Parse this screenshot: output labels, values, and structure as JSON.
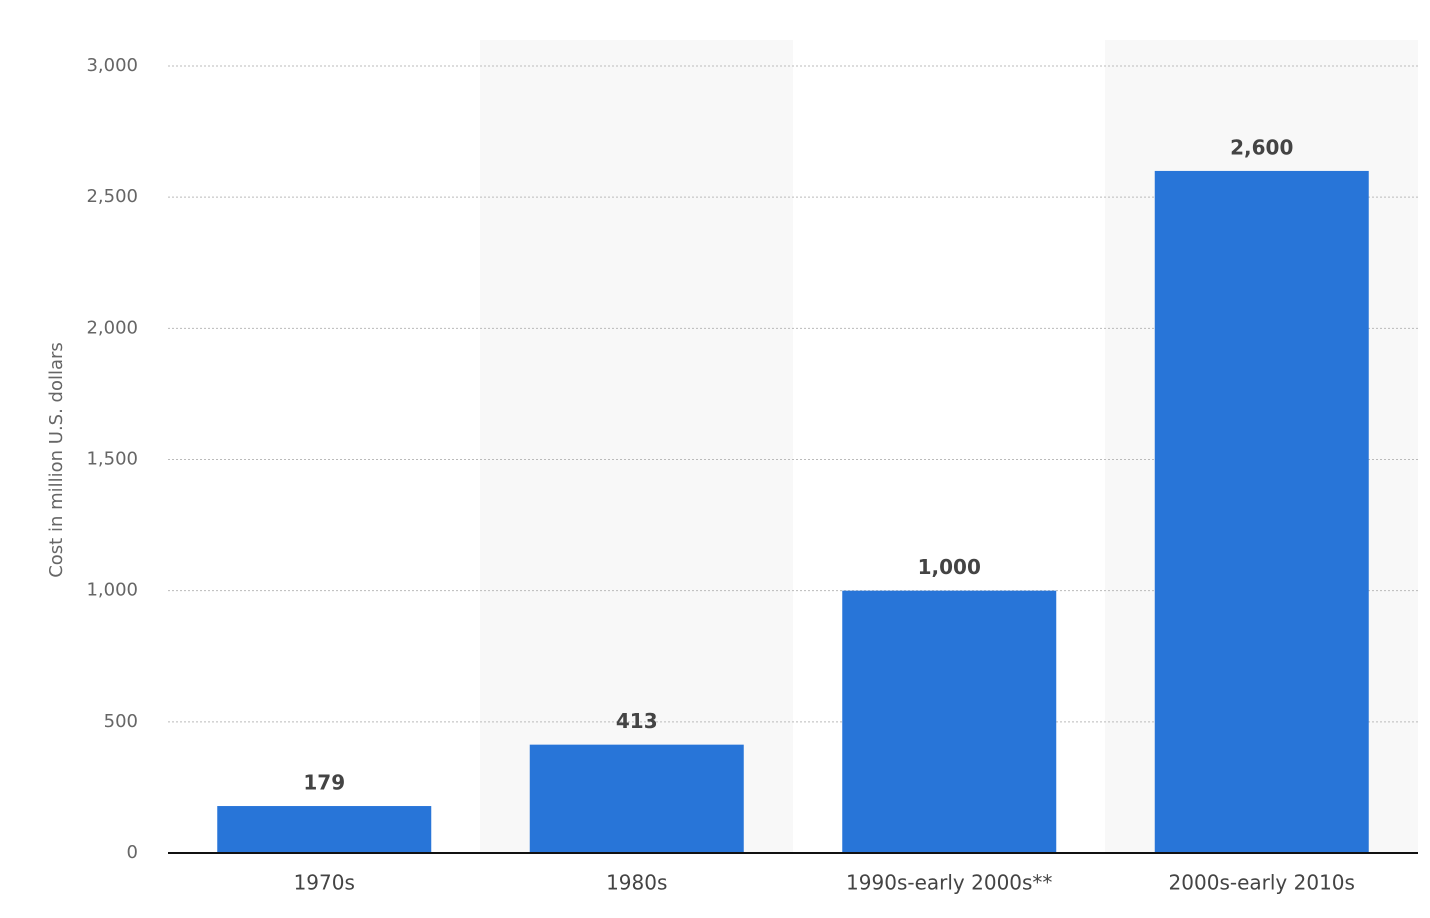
{
  "chart_data": {
    "type": "bar",
    "y_axis_label": "Cost in million U.S. dollars",
    "categories": [
      "1970s",
      "1980s",
      "1990s-early 2000s**",
      "2000s-early 2010s"
    ],
    "values": [
      179,
      413,
      1000,
      2600
    ],
    "value_labels": [
      "179",
      "413",
      "1,000",
      "2,600"
    ],
    "color": "#2875d8",
    "ylim": [
      0,
      3000
    ],
    "yticks": [
      0,
      500,
      {
        "value": 1000,
        "label": "1,000"
      },
      {
        "value": 1500,
        "label": "1,500"
      },
      {
        "value": 2000,
        "label": "2,000"
      },
      {
        "value": 2500,
        "label": "2,500"
      },
      {
        "value": 3000,
        "label": "3,000"
      }
    ],
    "grid": true
  }
}
